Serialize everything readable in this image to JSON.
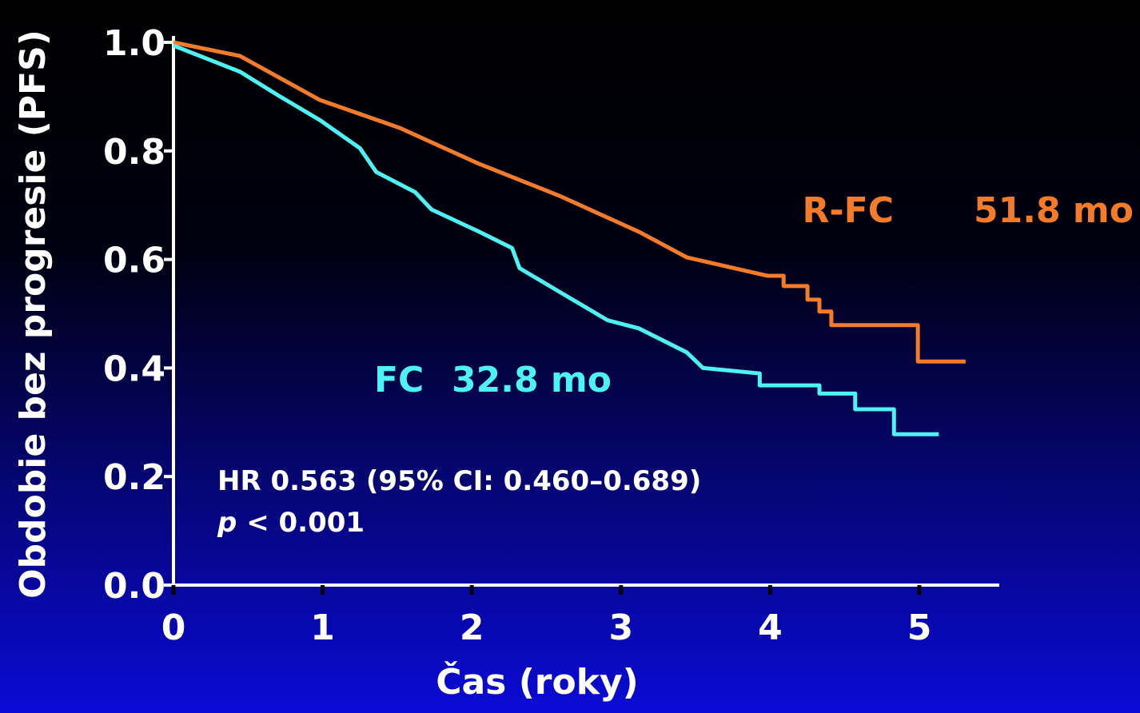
{
  "chart_data": {
    "type": "line",
    "x_label": "Čas (roky)",
    "y_label": "Obdobie bez progresie (PFS)",
    "xlim": [
      0,
      5
    ],
    "ylim": [
      0,
      1
    ],
    "xticks": [
      0,
      1,
      2,
      3,
      4,
      5
    ],
    "yticks": [
      {
        "value": 0,
        "label": "0.0"
      },
      0.2,
      0.4,
      0.6,
      0.8,
      {
        "value": 1,
        "label": "1.0"
      }
    ],
    "series": [
      {
        "name": "R-FC",
        "color": "#f47b2a",
        "x": [
          0,
          0.445,
          0.98,
          1.52,
          2.05,
          2.59,
          3.12,
          3.44,
          3.98,
          4.09,
          4.09,
          4.25,
          4.25,
          4.33,
          4.33,
          4.41,
          4.41,
          4.99,
          4.99,
          5.31
        ],
        "values": [
          1.0,
          0.975,
          0.894,
          0.842,
          0.776,
          0.717,
          0.651,
          0.604,
          0.57,
          0.57,
          0.551,
          0.551,
          0.526,
          0.526,
          0.504,
          0.504,
          0.479,
          0.479,
          0.412,
          0.412
        ]
      },
      {
        "name": "FC",
        "color": "#4df2f2",
        "x": [
          0,
          0.445,
          0.71,
          0.98,
          1.25,
          1.36,
          1.62,
          1.73,
          2.05,
          2.27,
          2.32,
          2.59,
          2.91,
          3.12,
          3.44,
          3.55,
          3.93,
          3.93,
          4.33,
          4.33,
          4.57,
          4.57,
          4.83,
          4.83,
          5.13
        ],
        "values": [
          0.994,
          0.946,
          0.901,
          0.857,
          0.805,
          0.761,
          0.724,
          0.692,
          0.651,
          0.621,
          0.584,
          0.54,
          0.488,
          0.473,
          0.429,
          0.4,
          0.39,
          0.368,
          0.368,
          0.353,
          0.353,
          0.324,
          0.324,
          0.278,
          0.278
        ]
      }
    ],
    "annotations": {
      "rfc_median": "51.8 mo",
      "fc_median": "32.8 mo",
      "hr": "HR 0.563 (95% CI: 0.460–0.689)",
      "p_symbol": "p",
      "p_value": "< 0.001"
    }
  }
}
